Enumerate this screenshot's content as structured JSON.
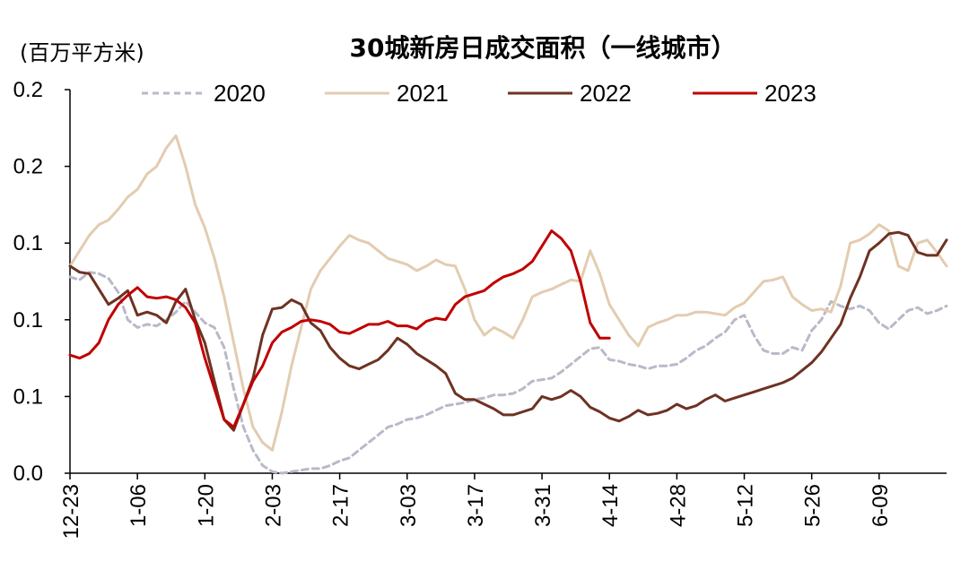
{
  "chart_data": {
    "type": "line",
    "title": "30城新房日成交面积（一线城市）",
    "unit_label": "(百万平方米)",
    "y_ticks": [
      "0.0",
      "0.1",
      "0.1",
      "0.1",
      "0.2",
      "0.2"
    ],
    "ylim": [
      0,
      0.25
    ],
    "x_ticks": [
      "12-23",
      "1-06",
      "1-20",
      "2-03",
      "2-17",
      "3-03",
      "3-17",
      "3-31",
      "4-14",
      "4-28",
      "5-12",
      "5-26",
      "6-09"
    ],
    "x_day_range": [
      0,
      182
    ],
    "legend_position": "top",
    "grid": false,
    "series": [
      {
        "name": "2020",
        "color": "#b9b9c9",
        "dash": true,
        "x": [
          0,
          2,
          4,
          6,
          8,
          10,
          12,
          14,
          16,
          18,
          20,
          22,
          24,
          26,
          28,
          30,
          32,
          34,
          36,
          38,
          40,
          42,
          44,
          46,
          48,
          50,
          52,
          54,
          56,
          58,
          60,
          62,
          64,
          66,
          68,
          70,
          72,
          74,
          76,
          78,
          80,
          82,
          84,
          86,
          88,
          90,
          92,
          94,
          96,
          98,
          100,
          102,
          104,
          106,
          108,
          110,
          112,
          114,
          116,
          118,
          120,
          122,
          124,
          126,
          128,
          130,
          132,
          134,
          136,
          138,
          140,
          142,
          144,
          146,
          148,
          150,
          152,
          154,
          156,
          158,
          160,
          162,
          164,
          166,
          168,
          170,
          172,
          174,
          176,
          178,
          180,
          182
        ],
        "y": [
          0.128,
          0.126,
          0.131,
          0.13,
          0.127,
          0.118,
          0.1,
          0.095,
          0.097,
          0.096,
          0.1,
          0.105,
          0.112,
          0.105,
          0.098,
          0.095,
          0.082,
          0.055,
          0.03,
          0.015,
          0.005,
          0.001,
          0.0,
          0.001,
          0.002,
          0.003,
          0.003,
          0.005,
          0.008,
          0.01,
          0.015,
          0.02,
          0.025,
          0.03,
          0.032,
          0.035,
          0.036,
          0.038,
          0.041,
          0.044,
          0.045,
          0.046,
          0.048,
          0.049,
          0.051,
          0.051,
          0.052,
          0.055,
          0.06,
          0.061,
          0.062,
          0.066,
          0.071,
          0.076,
          0.081,
          0.082,
          0.074,
          0.073,
          0.071,
          0.07,
          0.068,
          0.07,
          0.07,
          0.071,
          0.075,
          0.08,
          0.083,
          0.088,
          0.092,
          0.1,
          0.103,
          0.09,
          0.08,
          0.078,
          0.078,
          0.082,
          0.08,
          0.093,
          0.1,
          0.112,
          0.109,
          0.107,
          0.109,
          0.106,
          0.098,
          0.094,
          0.1,
          0.106,
          0.108,
          0.104,
          0.106,
          0.109
        ]
      },
      {
        "name": "2021",
        "color": "#e3ccb0",
        "dash": false,
        "x": [
          0,
          2,
          4,
          6,
          8,
          10,
          12,
          14,
          16,
          18,
          20,
          22,
          24,
          26,
          28,
          30,
          32,
          34,
          36,
          38,
          40,
          42,
          44,
          46,
          48,
          50,
          52,
          54,
          56,
          58,
          60,
          62,
          64,
          66,
          68,
          70,
          72,
          74,
          76,
          78,
          80,
          82,
          84,
          86,
          88,
          90,
          92,
          94,
          96,
          98,
          100,
          102,
          104,
          106,
          108,
          110,
          112,
          114,
          116,
          118,
          120,
          122,
          124,
          126,
          128,
          130,
          132,
          134,
          136,
          138,
          140,
          142,
          144,
          146,
          148,
          150,
          152,
          154,
          156,
          158,
          160,
          162,
          164,
          166,
          168,
          170,
          172,
          174,
          176,
          178,
          180,
          182
        ],
        "y": [
          0.135,
          0.145,
          0.155,
          0.162,
          0.165,
          0.172,
          0.18,
          0.185,
          0.195,
          0.2,
          0.212,
          0.22,
          0.2,
          0.175,
          0.16,
          0.14,
          0.115,
          0.085,
          0.055,
          0.03,
          0.02,
          0.015,
          0.04,
          0.07,
          0.095,
          0.12,
          0.132,
          0.14,
          0.148,
          0.155,
          0.152,
          0.15,
          0.145,
          0.14,
          0.138,
          0.136,
          0.132,
          0.135,
          0.139,
          0.136,
          0.135,
          0.12,
          0.1,
          0.09,
          0.095,
          0.092,
          0.088,
          0.1,
          0.115,
          0.118,
          0.12,
          0.123,
          0.126,
          0.125,
          0.145,
          0.13,
          0.11,
          0.1,
          0.09,
          0.083,
          0.095,
          0.098,
          0.1,
          0.103,
          0.103,
          0.105,
          0.105,
          0.104,
          0.103,
          0.108,
          0.111,
          0.118,
          0.125,
          0.126,
          0.128,
          0.115,
          0.11,
          0.106,
          0.107,
          0.105,
          0.122,
          0.15,
          0.152,
          0.156,
          0.162,
          0.158,
          0.135,
          0.132,
          0.15,
          0.152,
          0.144,
          0.135
        ]
      },
      {
        "name": "2022",
        "color": "#6e3222",
        "dash": false,
        "x": [
          0,
          2,
          4,
          6,
          8,
          10,
          12,
          14,
          16,
          18,
          20,
          22,
          24,
          26,
          28,
          30,
          32,
          34,
          36,
          38,
          40,
          42,
          44,
          46,
          48,
          50,
          52,
          54,
          56,
          58,
          60,
          62,
          64,
          66,
          68,
          70,
          72,
          74,
          76,
          78,
          80,
          82,
          84,
          86,
          88,
          90,
          92,
          94,
          96,
          98,
          100,
          102,
          104,
          106,
          108,
          110,
          112,
          114,
          116,
          118,
          120,
          122,
          124,
          126,
          128,
          130,
          132,
          134,
          136,
          138,
          140,
          142,
          144,
          146,
          148,
          150,
          152,
          154,
          156,
          158,
          160,
          162,
          164,
          166,
          168,
          170,
          172,
          174,
          176,
          178,
          180,
          182
        ],
        "y": [
          0.135,
          0.131,
          0.13,
          0.12,
          0.11,
          0.114,
          0.119,
          0.103,
          0.105,
          0.103,
          0.098,
          0.112,
          0.12,
          0.1,
          0.085,
          0.06,
          0.035,
          0.028,
          0.045,
          0.062,
          0.09,
          0.107,
          0.108,
          0.113,
          0.11,
          0.098,
          0.093,
          0.082,
          0.075,
          0.07,
          0.068,
          0.071,
          0.074,
          0.08,
          0.088,
          0.084,
          0.078,
          0.074,
          0.07,
          0.065,
          0.052,
          0.048,
          0.048,
          0.045,
          0.042,
          0.038,
          0.038,
          0.04,
          0.042,
          0.05,
          0.048,
          0.05,
          0.054,
          0.05,
          0.043,
          0.04,
          0.036,
          0.034,
          0.037,
          0.041,
          0.038,
          0.039,
          0.041,
          0.045,
          0.042,
          0.044,
          0.048,
          0.051,
          0.047,
          0.049,
          0.051,
          0.053,
          0.055,
          0.057,
          0.059,
          0.062,
          0.067,
          0.072,
          0.079,
          0.088,
          0.097,
          0.114,
          0.128,
          0.145,
          0.15,
          0.156,
          0.157,
          0.155,
          0.144,
          0.142,
          0.142,
          0.152
        ]
      },
      {
        "name": "2023",
        "color": "#c00000",
        "dash": false,
        "x": [
          0,
          2,
          4,
          6,
          8,
          10,
          12,
          14,
          16,
          18,
          20,
          22,
          24,
          26,
          28,
          30,
          32,
          34,
          36,
          38,
          40,
          42,
          44,
          46,
          48,
          50,
          52,
          54,
          56,
          58,
          60,
          62,
          64,
          66,
          68,
          70,
          72,
          74,
          76,
          78,
          80,
          82,
          84,
          86,
          88,
          90,
          92,
          94,
          96,
          98,
          100,
          102,
          104,
          106,
          108,
          110,
          112
        ],
        "y": [
          0.077,
          0.075,
          0.078,
          0.085,
          0.1,
          0.11,
          0.116,
          0.121,
          0.115,
          0.114,
          0.115,
          0.113,
          0.108,
          0.098,
          0.075,
          0.055,
          0.035,
          0.03,
          0.045,
          0.06,
          0.07,
          0.085,
          0.092,
          0.095,
          0.099,
          0.1,
          0.099,
          0.097,
          0.092,
          0.091,
          0.094,
          0.097,
          0.097,
          0.099,
          0.096,
          0.096,
          0.094,
          0.099,
          0.101,
          0.1,
          0.11,
          0.115,
          0.117,
          0.119,
          0.124,
          0.128,
          0.13,
          0.133,
          0.138,
          0.148,
          0.158,
          0.153,
          0.145,
          0.125,
          0.098,
          0.088,
          0.088
        ]
      }
    ]
  }
}
